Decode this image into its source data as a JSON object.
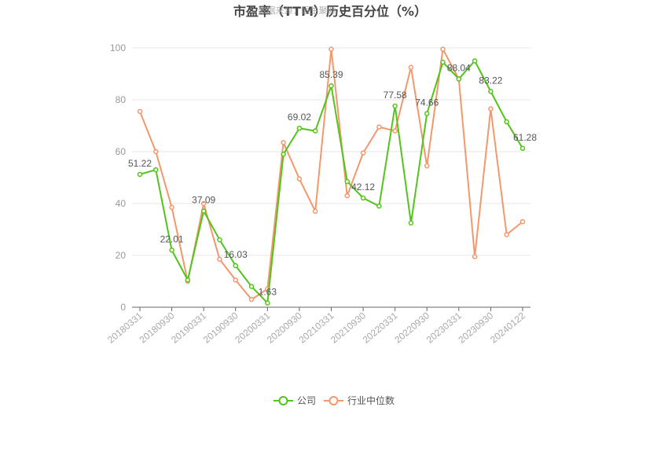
{
  "chart_data": {
    "type": "line",
    "title": "市盈率（TTM）历史百分位（%）",
    "watermark": "数据来源：恒生聚源",
    "ylim": [
      0,
      100
    ],
    "yticks": [
      0,
      20,
      40,
      60,
      80,
      100
    ],
    "xtick_labels": [
      "20180331",
      "20180930",
      "20190331",
      "20190930",
      "20200331",
      "20200930",
      "20210331",
      "20210930",
      "20220331",
      "20220930",
      "20230331",
      "20230930",
      "20240122"
    ],
    "x": [
      "20180331",
      "20180630",
      "20180930",
      "20181231",
      "20190331",
      "20190630",
      "20190930",
      "20191231",
      "20200331",
      "20200630",
      "20200930",
      "20201231",
      "20210331",
      "20210630",
      "20210930",
      "20211231",
      "20220331",
      "20220630",
      "20220930",
      "20221231",
      "20230331",
      "20230630",
      "20230930",
      "20231231",
      "20240122"
    ],
    "grid": true,
    "legend_position": "bottom",
    "series": [
      {
        "name": "公司",
        "color": "#52c41a",
        "values": [
          51.22,
          53.0,
          22.01,
          10.5,
          37.09,
          26.0,
          16.03,
          8.0,
          1.63,
          59.0,
          69.02,
          68.0,
          85.39,
          48.5,
          42.12,
          39.0,
          77.58,
          32.5,
          74.66,
          94.5,
          88.04,
          95.0,
          83.22,
          71.5,
          61.28
        ],
        "labels": [
          "51.22",
          "",
          "22.01",
          "",
          "37.09",
          "",
          "16.03",
          "",
          "1.63",
          "",
          "69.02",
          "",
          "85.39",
          "",
          "42.12",
          "",
          "77.58",
          "",
          "74.66",
          "",
          "88.04",
          "",
          "83.22",
          "",
          "61.28"
        ]
      },
      {
        "name": "行业中位数",
        "color": "#f4976c",
        "values": [
          75.5,
          60.0,
          38.5,
          10.0,
          40.0,
          18.5,
          10.5,
          3.0,
          7.0,
          63.5,
          49.5,
          37.0,
          99.5,
          43.0,
          59.5,
          69.5,
          68.0,
          92.5,
          54.5,
          99.5,
          88.0,
          19.5,
          76.5,
          28.0,
          33.0
        ]
      }
    ]
  }
}
